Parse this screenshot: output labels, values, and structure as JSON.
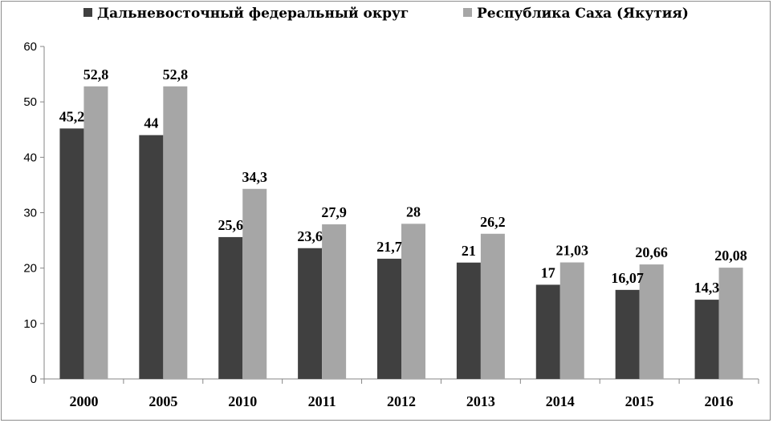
{
  "chart_data": {
    "type": "bar",
    "title": "",
    "xlabel": "",
    "ylabel": "",
    "categories": [
      "2000",
      "2005",
      "2010",
      "2011",
      "2012",
      "2013",
      "2014",
      "2015",
      "2016"
    ],
    "series": [
      {
        "name": "Дальневосточный федеральный округ",
        "color": "#404040",
        "values": [
          45.2,
          44,
          25.6,
          23.6,
          21.7,
          21,
          17,
          16.07,
          14.3
        ],
        "labels": [
          "45,2",
          "44",
          "25,6",
          "23,6",
          "21,7",
          "21",
          "17",
          "16,07",
          "14,3"
        ]
      },
      {
        "name": "Республика Саха (Якутия)",
        "color": "#a6a6a6",
        "values": [
          52.8,
          52.8,
          34.3,
          27.9,
          28,
          26.2,
          21.03,
          20.66,
          20.08
        ],
        "labels": [
          "52,8",
          "52,8",
          "34,3",
          "27,9",
          "28",
          "26,2",
          "21,03",
          "20,66",
          "20,08"
        ]
      }
    ],
    "ylim": [
      0,
      60
    ],
    "yticks": [
      0,
      10,
      20,
      30,
      40,
      50,
      60
    ],
    "grid": false,
    "legend_position": "top"
  }
}
